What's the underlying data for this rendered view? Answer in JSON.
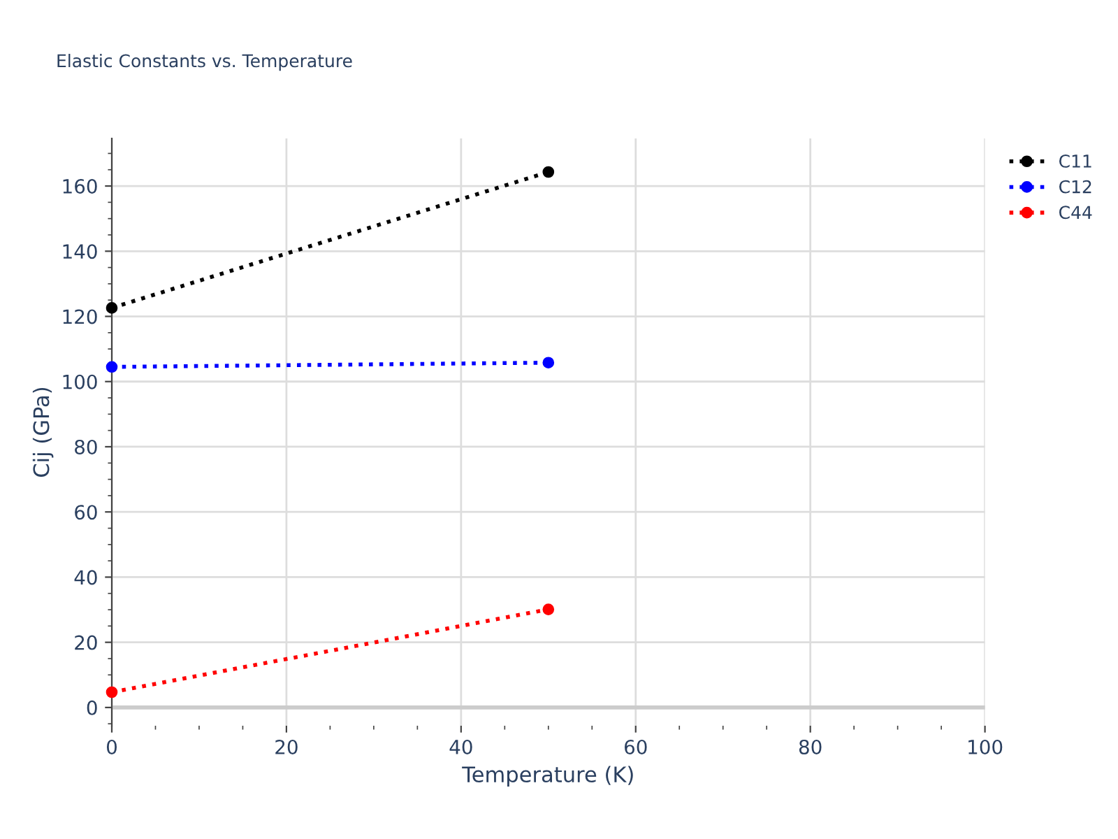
{
  "chart_data": {
    "type": "line",
    "title": "Elastic Constants vs. Temperature",
    "xlabel": "Temperature (K)",
    "ylabel": "Cij (GPa)",
    "x": [
      0,
      50
    ],
    "series": [
      {
        "name": "C11",
        "color": "#000000",
        "values": [
          122.6,
          164.3
        ]
      },
      {
        "name": "C12",
        "color": "#0000ff",
        "values": [
          104.5,
          105.8
        ]
      },
      {
        "name": "C44",
        "color": "#ff0000",
        "values": [
          4.7,
          30.1
        ]
      }
    ],
    "xlim": [
      0,
      100
    ],
    "xticks": [
      0,
      20,
      40,
      60,
      80,
      100
    ],
    "ylim": [
      -5.6,
      174.6
    ],
    "yticks": [
      0,
      20,
      40,
      60,
      80,
      100,
      120,
      140,
      160
    ],
    "grid": true,
    "legend": "top right",
    "marker": "circle",
    "line_style": "dotted"
  }
}
